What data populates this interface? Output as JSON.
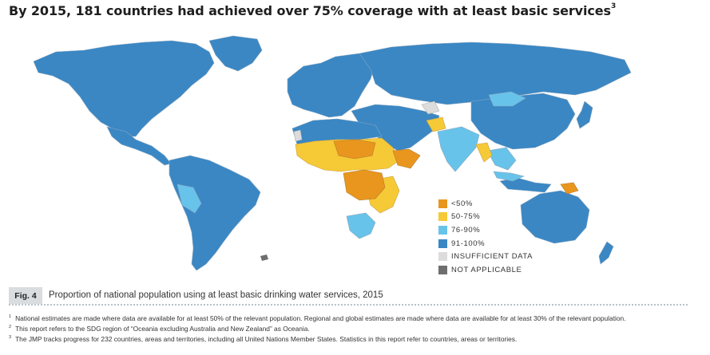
{
  "header": {
    "title": "By 2015, 181 countries had achieved over 75% coverage with at least basic services",
    "title_note_marker": "3"
  },
  "colors": {
    "lt50": "#e8961e",
    "p50_75": "#f6c936",
    "p76_90": "#67c3ea",
    "p91_100": "#3a87c4",
    "insufficient": "#dcdcdc",
    "not_applicable": "#6e6e6e",
    "ocean": "#ffffff"
  },
  "legend": [
    {
      "label": "<50%",
      "color": "#e8961e"
    },
    {
      "label": "50-75%",
      "color": "#f6c936"
    },
    {
      "label": "76-90%",
      "color": "#67c3ea"
    },
    {
      "label": "91-100%",
      "color": "#3a87c4"
    },
    {
      "label": "INSUFFICIENT DATA",
      "color": "#dcdcdc"
    },
    {
      "label": "NOT APPLICABLE",
      "color": "#6e6e6e"
    }
  ],
  "figure": {
    "tag": "Fig. 4",
    "caption": "Proportion of national population using at least basic drinking water services, 2015"
  },
  "footnotes": [
    {
      "marker": "1",
      "text": "National estimates are made where data are available for at least 50% of the relevant population. Regional and global estimates are made where data are available for at least 30% of the relevant population."
    },
    {
      "marker": "2",
      "text": "This report refers to the SDG region of “Oceania excluding Australia and New Zealand” as Oceania."
    },
    {
      "marker": "3",
      "text": "The JMP tracks progress for 232 countries, areas and territories, including all United Nations Member States. Statistics in this report refer to countries, areas or territories."
    }
  ]
}
